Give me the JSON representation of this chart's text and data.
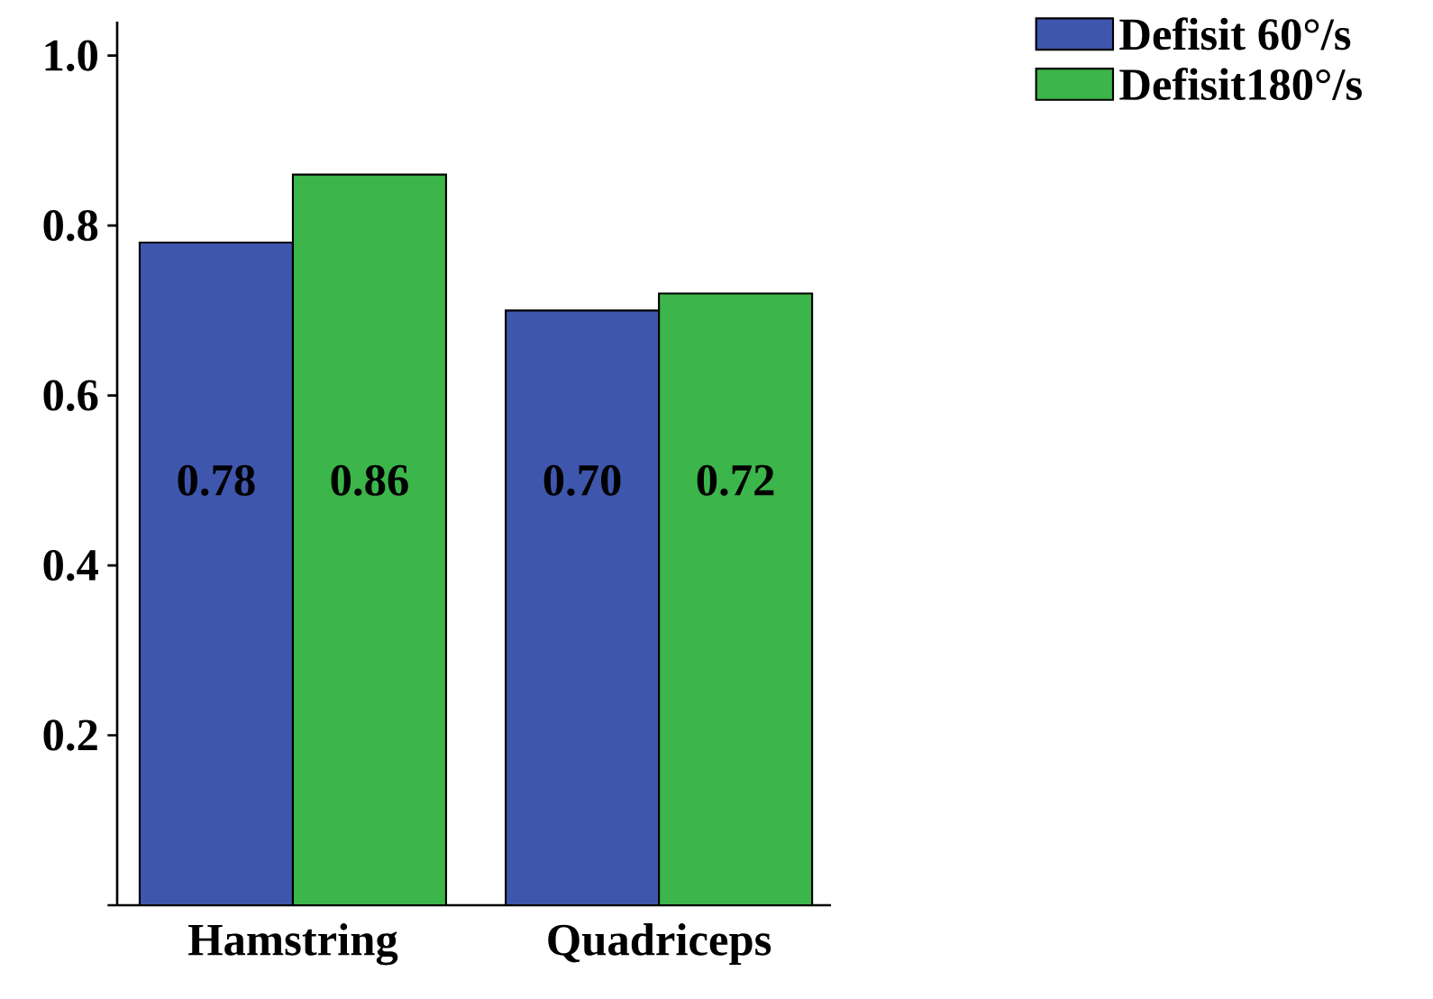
{
  "chart_data": {
    "type": "bar",
    "categories": [
      "Hamstring",
      "Quadriceps"
    ],
    "series": [
      {
        "name": "Defisit 60°/s",
        "color": "#3f56ad",
        "values": [
          0.78,
          0.7
        ],
        "value_labels": [
          "0.78",
          "0.70"
        ]
      },
      {
        "name": "Defisit180°/s",
        "color": "#3cb54a",
        "values": [
          0.86,
          0.72
        ],
        "value_labels": [
          "0.86",
          "0.72"
        ]
      }
    ],
    "ylim": [
      0,
      1.04
    ],
    "yticks": [
      {
        "value": 0,
        "label": null
      },
      0.2,
      0.4,
      0.6,
      0.8,
      {
        "value": 1.0,
        "label": "1.0"
      }
    ],
    "data_labels": true,
    "legend": "top right",
    "grid": false
  }
}
